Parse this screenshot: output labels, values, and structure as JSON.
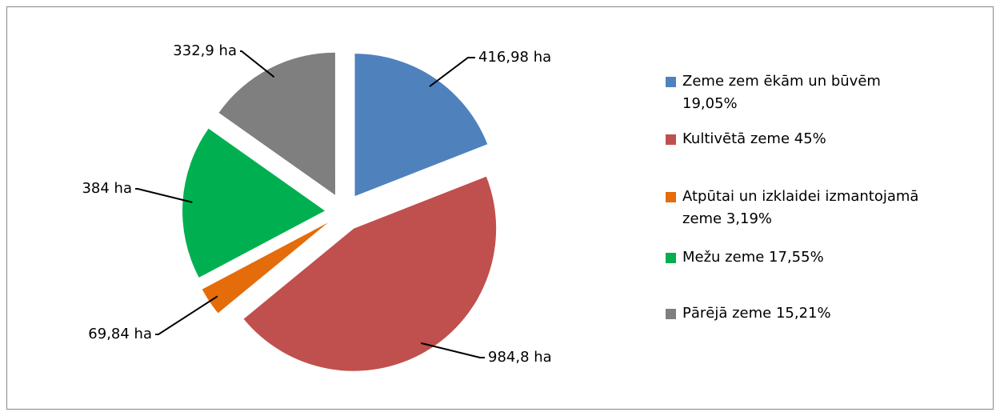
{
  "chart_data": {
    "type": "pie",
    "categories": [
      "Zeme zem ēkām un būvēm 19,05%",
      "Kultivētā zeme 45%",
      "Atpūtai un izklaidei izmantojamā zeme 3,19%",
      "Mežu zeme 17,55%",
      "Pārējā zeme 15,21%"
    ],
    "values": [
      416.98,
      984.8,
      69.84,
      384,
      332.9
    ],
    "value_labels": [
      "416,98 ha",
      "984,8 ha",
      "69,84 ha",
      "384 ha",
      "332,9 ha"
    ],
    "colors": [
      "#4f81bd",
      "#c0504d",
      "#e46c0a",
      "#00b050",
      "#7f7f7f"
    ],
    "legend": "right"
  }
}
